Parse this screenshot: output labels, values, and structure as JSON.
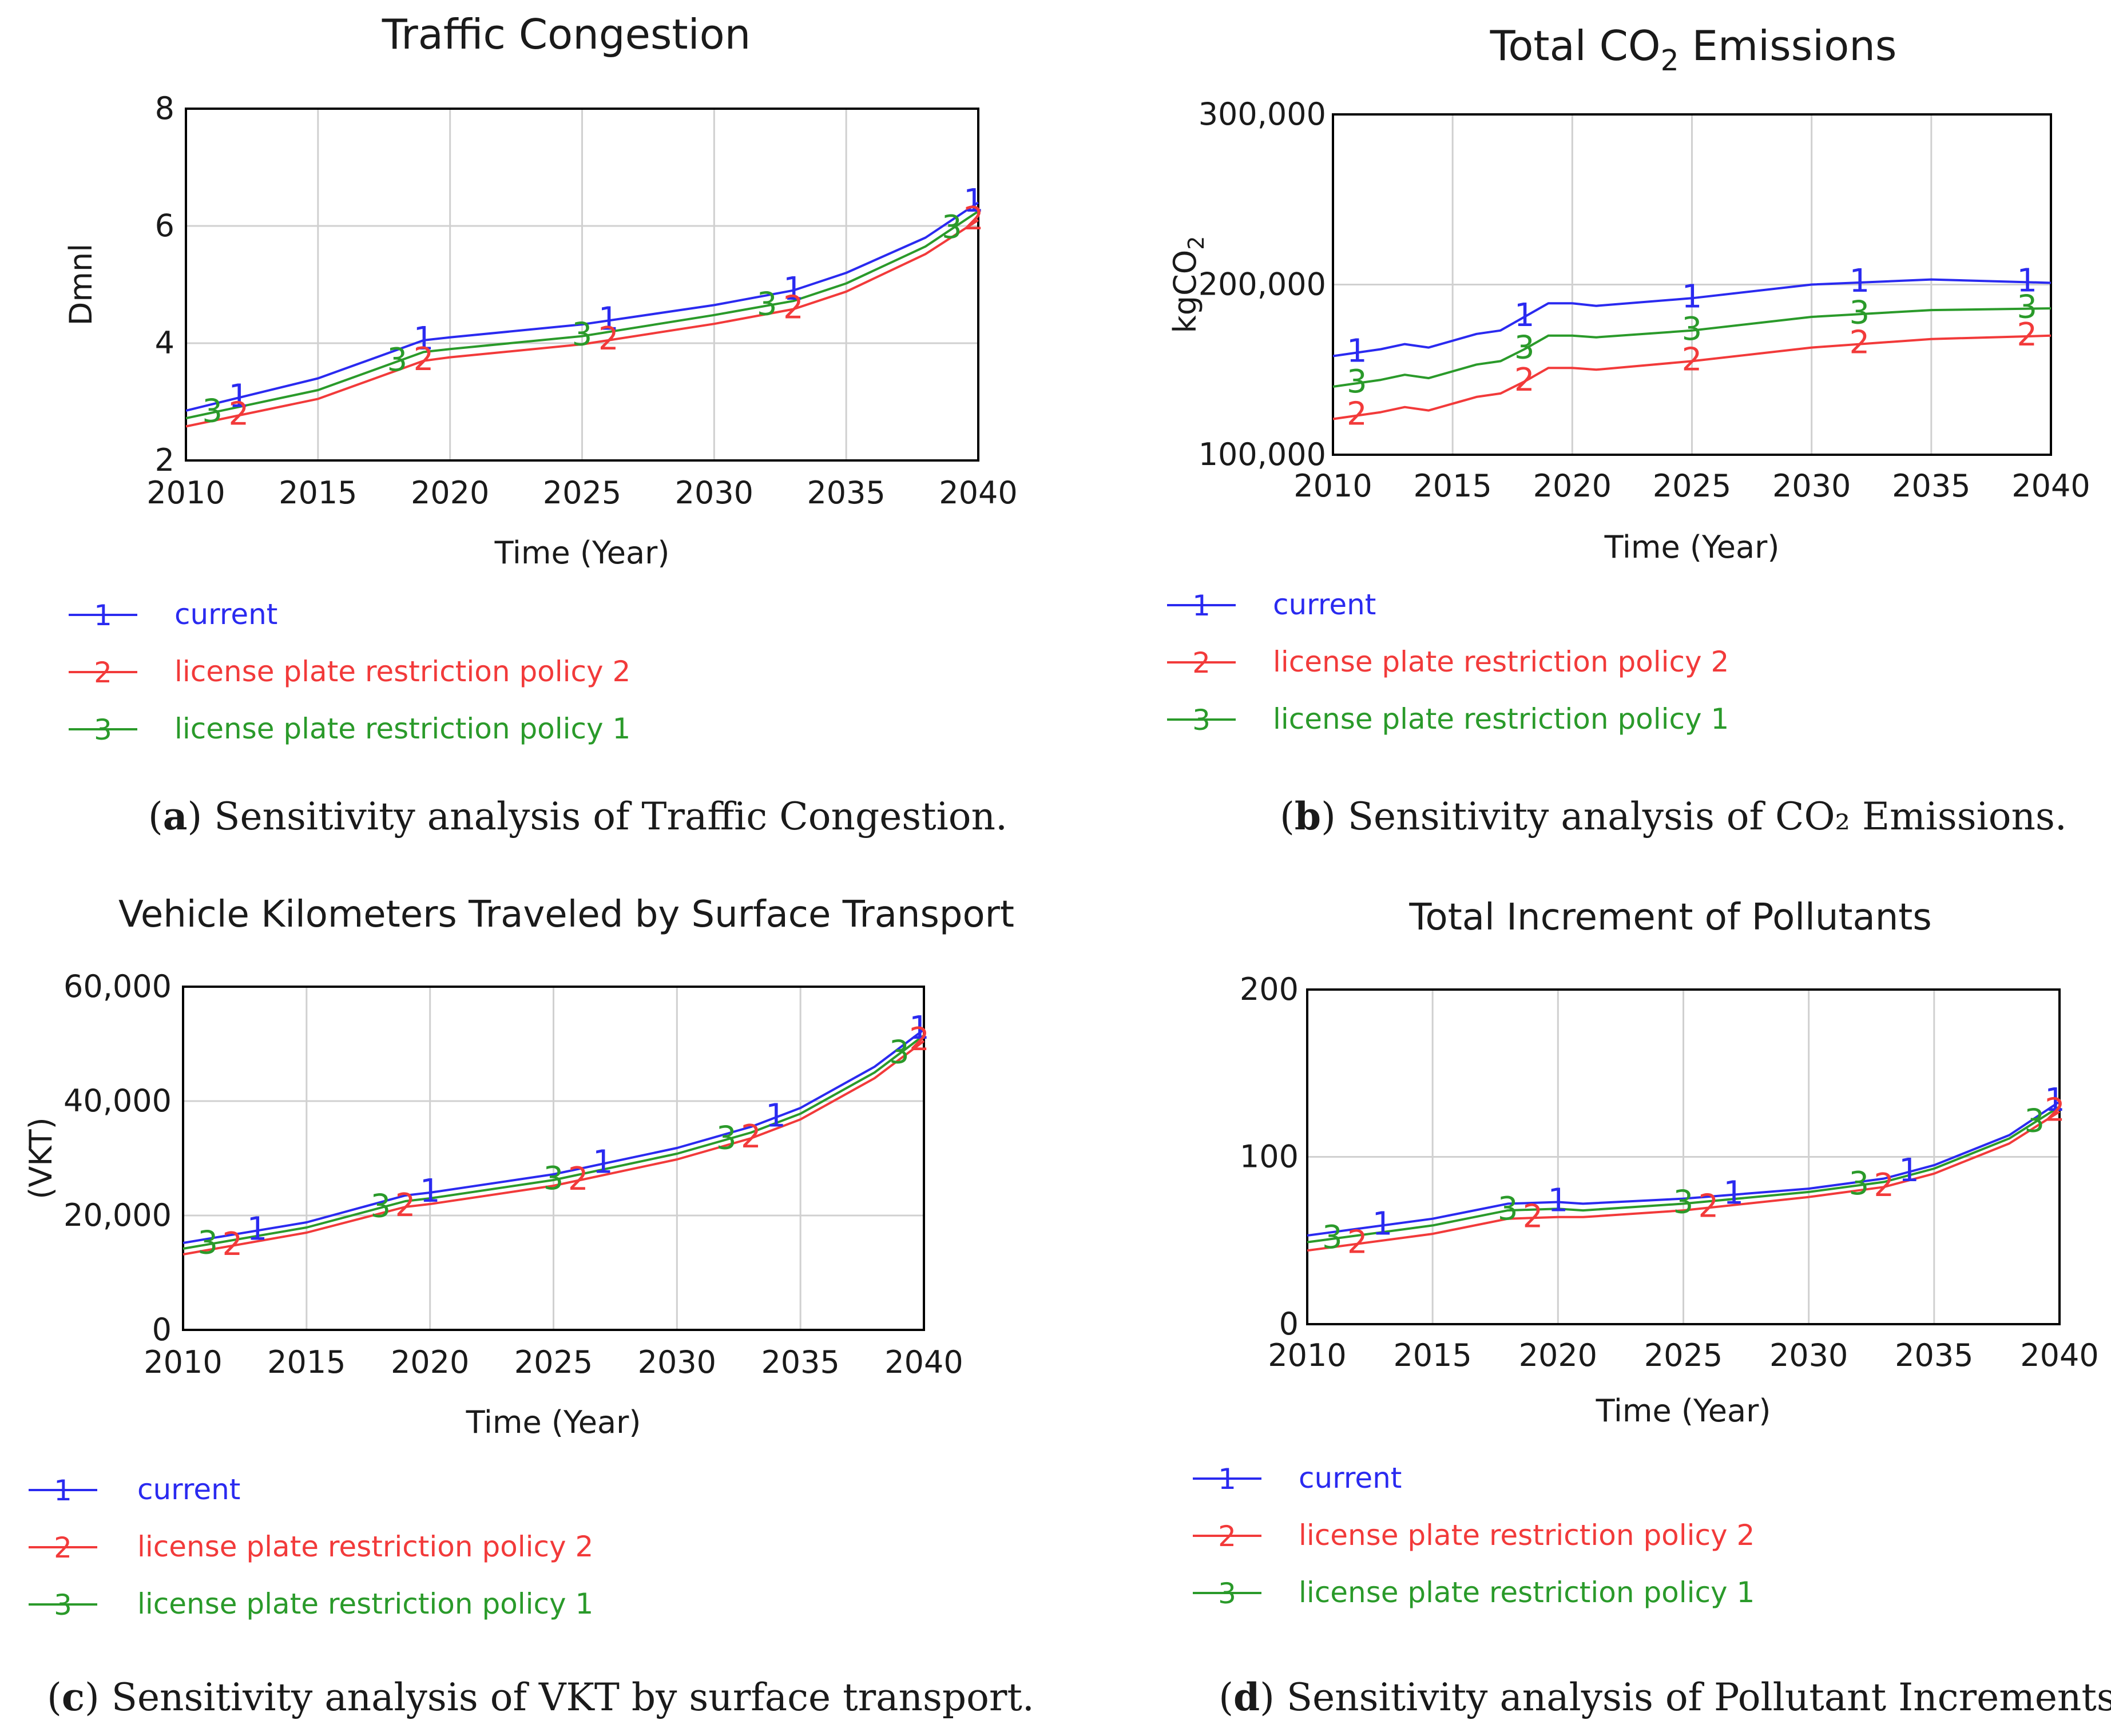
{
  "figure": {
    "panels": [
      {
        "id": "a",
        "caption_letter": "a",
        "caption_text": "Sensitivity analysis of Traffic Congestion."
      },
      {
        "id": "b",
        "caption_letter": "b",
        "caption_text": "Sensitivity analysis of CO₂ Emissions."
      },
      {
        "id": "c",
        "caption_letter": "c",
        "caption_text": "Sensitivity analysis of VKT by surface transport."
      },
      {
        "id": "d",
        "caption_letter": "d",
        "caption_text": "Sensitivity analysis of Pollutant Increments."
      }
    ]
  },
  "colors": {
    "current": "#2a2af0",
    "policy2": "#f23a3a",
    "policy1": "#2a9a2a",
    "grid": "#d0d0d0",
    "axis": "#000000",
    "text": "#1a1a1a"
  },
  "chart_data": [
    {
      "id": "a",
      "type": "line",
      "title": "Traffic Congestion",
      "title_sub": "",
      "title_suffix": "",
      "xlabel": "Time (Year)",
      "ylabel": "Dmnl",
      "ylabel_sub": "",
      "xlim": [
        2010,
        2040
      ],
      "ylim": [
        2,
        8
      ],
      "xticks": [
        2010,
        2015,
        2020,
        2025,
        2030,
        2035,
        2040
      ],
      "yticks": [
        2,
        4,
        6,
        8
      ],
      "ytick_labels": [
        "2",
        "4",
        "6",
        "8"
      ],
      "grid": true,
      "x": [
        2010,
        2015,
        2019,
        2020,
        2025,
        2030,
        2033,
        2035,
        2038,
        2040
      ],
      "series": [
        {
          "key": "current",
          "marker": "1",
          "name": "current",
          "color": "#2a2af0",
          "values": [
            2.85,
            3.4,
            4.05,
            4.1,
            4.32,
            4.65,
            4.9,
            5.2,
            5.8,
            6.4
          ],
          "marker_x": [
            2012,
            2019,
            2026,
            2033,
            2040
          ]
        },
        {
          "key": "policy2",
          "marker": "2",
          "name": "license plate restriction policy 2",
          "color": "#f23a3a",
          "values": [
            2.58,
            3.05,
            3.7,
            3.76,
            3.98,
            4.33,
            4.58,
            4.88,
            5.52,
            6.1
          ],
          "marker_x": [
            2012,
            2019,
            2026,
            2033,
            2040
          ]
        },
        {
          "key": "policy1",
          "marker": "3",
          "name": "license plate restriction policy 1",
          "color": "#2a9a2a",
          "values": [
            2.72,
            3.2,
            3.85,
            3.9,
            4.12,
            4.48,
            4.72,
            5.02,
            5.65,
            6.25
          ],
          "marker_x": [
            2011,
            2018,
            2025,
            2032,
            2039
          ]
        }
      ],
      "legend_position": "bottom-left"
    },
    {
      "id": "b",
      "type": "line",
      "title": "Total CO",
      "title_sub": "2",
      "title_suffix": " Emissions",
      "xlabel": "Time (Year)",
      "ylabel": "kgCO",
      "ylabel_sub": "2",
      "xlim": [
        2010,
        2040
      ],
      "ylim": [
        100000,
        300000
      ],
      "xticks": [
        2010,
        2015,
        2020,
        2025,
        2030,
        2035,
        2040
      ],
      "yticks": [
        100000,
        200000,
        300000
      ],
      "ytick_labels": [
        "100,000",
        "200,000",
        "300,000"
      ],
      "grid": true,
      "x": [
        2010,
        2012,
        2013,
        2014,
        2016,
        2017,
        2018,
        2019,
        2020,
        2021,
        2025,
        2030,
        2035,
        2040
      ],
      "series": [
        {
          "key": "current",
          "marker": "1",
          "name": "current",
          "color": "#2a2af0",
          "values": [
            158000,
            162000,
            165000,
            163000,
            171000,
            173000,
            181000,
            189000,
            189000,
            187500,
            192000,
            200000,
            203000,
            201000
          ],
          "marker_x": [
            2011,
            2018,
            2025,
            2032,
            2039
          ]
        },
        {
          "key": "policy2",
          "marker": "2",
          "name": "license plate restriction policy 2",
          "color": "#f23a3a",
          "values": [
            121000,
            125000,
            128000,
            126000,
            134000,
            136000,
            143000,
            151000,
            151000,
            150000,
            155000,
            163000,
            168000,
            170000
          ],
          "marker_x": [
            2011,
            2018,
            2025,
            2032,
            2039
          ]
        },
        {
          "key": "policy1",
          "marker": "3",
          "name": "license plate restriction policy 1",
          "color": "#2a9a2a",
          "values": [
            140000,
            144000,
            147000,
            145000,
            153000,
            155000,
            162000,
            170000,
            170000,
            169000,
            173000,
            181000,
            185000,
            186000
          ],
          "marker_x": [
            2011,
            2018,
            2025,
            2032,
            2039
          ]
        }
      ],
      "legend_position": "bottom-left"
    },
    {
      "id": "c",
      "type": "line",
      "title": "Vehicle Kilometers Traveled by Surface Transport",
      "title_sub": "",
      "title_suffix": "",
      "xlabel": "Time (Year)",
      "ylabel": "(VKT)",
      "ylabel_sub": "",
      "xlim": [
        2010,
        2040
      ],
      "ylim": [
        0,
        60000
      ],
      "xticks": [
        2010,
        2015,
        2020,
        2025,
        2030,
        2035,
        2040
      ],
      "yticks": [
        0,
        20000,
        40000,
        60000
      ],
      "ytick_labels": [
        "0",
        "20,000",
        "40,000",
        "60,000"
      ],
      "grid": true,
      "x": [
        2010,
        2015,
        2019,
        2020,
        2025,
        2030,
        2033,
        2035,
        2038,
        2040
      ],
      "series": [
        {
          "key": "current",
          "marker": "1",
          "name": "current",
          "color": "#2a2af0",
          "values": [
            15200,
            18800,
            23500,
            24000,
            27200,
            31800,
            35500,
            38800,
            46000,
            52500
          ],
          "marker_x": [
            2013,
            2020,
            2027,
            2034,
            2040
          ]
        },
        {
          "key": "policy2",
          "marker": "2",
          "name": "license plate restriction policy 2",
          "color": "#f23a3a",
          "values": [
            13200,
            17000,
            21500,
            22000,
            25200,
            29800,
            33500,
            36800,
            44000,
            50500
          ],
          "marker_x": [
            2012,
            2019,
            2026,
            2033,
            2040
          ]
        },
        {
          "key": "policy1",
          "marker": "3",
          "name": "license plate restriction policy 1",
          "color": "#2a9a2a",
          "values": [
            14200,
            17900,
            22500,
            23000,
            26200,
            30800,
            34500,
            37800,
            45000,
            51500
          ],
          "marker_x": [
            2011,
            2018,
            2025,
            2032,
            2039
          ]
        }
      ],
      "legend_position": "bottom-left"
    },
    {
      "id": "d",
      "type": "line",
      "title": "Total Increment of Pollutants",
      "title_sub": "",
      "title_suffix": "",
      "xlabel": "Time (Year)",
      "ylabel": "",
      "ylabel_sub": "",
      "xlim": [
        2010,
        2040
      ],
      "ylim": [
        0,
        200
      ],
      "xticks": [
        2010,
        2015,
        2020,
        2025,
        2030,
        2035,
        2040
      ],
      "yticks": [
        0,
        100,
        200
      ],
      "ytick_labels": [
        "0",
        "100",
        "200"
      ],
      "grid": true,
      "x": [
        2010,
        2015,
        2018,
        2020,
        2021,
        2025,
        2030,
        2033,
        2035,
        2038,
        2040
      ],
      "series": [
        {
          "key": "current",
          "marker": "1",
          "name": "current",
          "color": "#2a2af0",
          "values": [
            53,
            63,
            72,
            73,
            72,
            75,
            81,
            87,
            95,
            113,
            133
          ],
          "marker_x": [
            2013,
            2020,
            2027,
            2034,
            2040
          ]
        },
        {
          "key": "policy2",
          "marker": "2",
          "name": "license plate restriction policy 2",
          "color": "#f23a3a",
          "values": [
            44,
            54,
            63,
            64,
            64,
            68,
            76,
            82,
            90,
            108,
            127
          ],
          "marker_x": [
            2012,
            2019,
            2026,
            2033,
            2040
          ]
        },
        {
          "key": "policy1",
          "marker": "3",
          "name": "license plate restriction policy 1",
          "color": "#2a9a2a",
          "values": [
            49,
            59,
            68,
            69,
            68,
            72,
            79,
            85,
            93,
            111,
            130
          ],
          "marker_x": [
            2011,
            2018,
            2025,
            2032,
            2039
          ]
        }
      ],
      "legend_position": "bottom-left"
    }
  ]
}
